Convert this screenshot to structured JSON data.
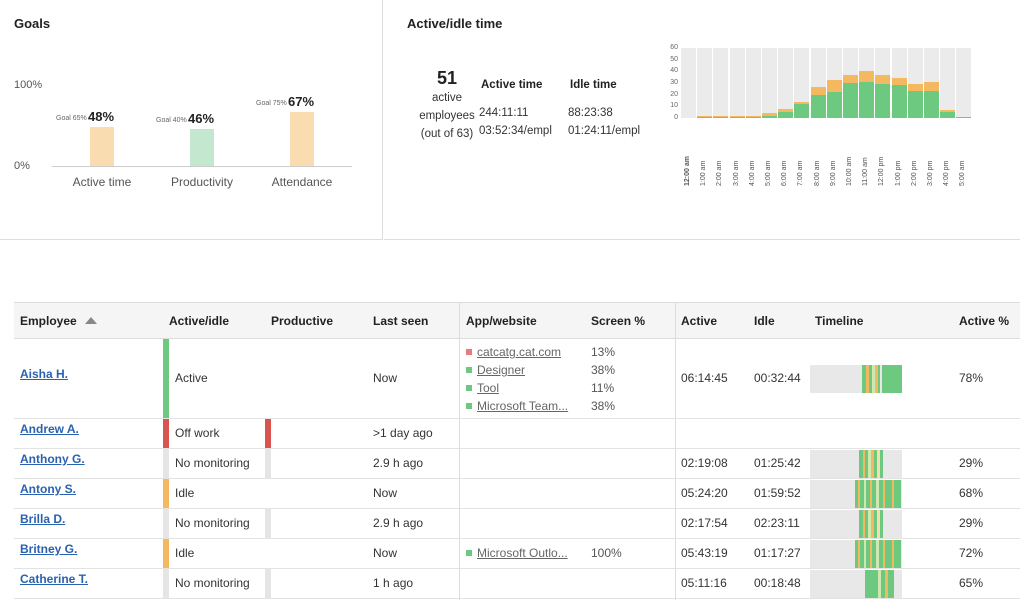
{
  "goals": {
    "title": "Goals",
    "y_top": "100%",
    "y_bottom": "0%",
    "items": [
      {
        "name": "Active time",
        "value": "48%",
        "goal": "Goal 65%",
        "pct": 0.48,
        "color": "#f9ddb0"
      },
      {
        "name": "Productivity",
        "value": "46%",
        "goal": "Goal 40%",
        "pct": 0.46,
        "color": "#c4e8cf"
      },
      {
        "name": "Attendance",
        "value": "67%",
        "goal": "Goal 75%",
        "pct": 0.67,
        "color": "#f9ddb0"
      }
    ]
  },
  "activity": {
    "title": "Active/idle time",
    "count": "51",
    "count_lines": [
      "active",
      "employees",
      "(out of 63)"
    ],
    "active_header": "Active time",
    "idle_header": "Idle time",
    "active_total": "244:11:11",
    "idle_total": "88:23:38",
    "active_per": "03:52:34/empl",
    "idle_per": "01:24:11/empl"
  },
  "chart_data": {
    "type": "bar",
    "stacked": true,
    "categories": [
      "12:00 am",
      "1:00 am",
      "2:00 am",
      "3:00 am",
      "4:00 am",
      "5:00 am",
      "6:00 am",
      "7:00 am",
      "8:00 am",
      "9:00 am",
      "10:00 am",
      "11:00 am",
      "12:00 pm",
      "1:00 pm",
      "2:00 pm",
      "3:00 pm",
      "4:00 pm",
      "5:00 am"
    ],
    "series": [
      {
        "values": [
          0,
          1,
          1,
          1,
          1,
          2,
          5,
          12,
          20,
          22,
          30,
          31,
          29,
          28,
          23,
          23,
          5,
          1
        ]
      },
      {
        "values": [
          0,
          1,
          1,
          1,
          1,
          2,
          3,
          2,
          7,
          11,
          7,
          9,
          8,
          6,
          6,
          8,
          2,
          0
        ]
      }
    ],
    "ylim": [
      0,
      60
    ],
    "yticks": [
      "60",
      "50",
      "40",
      "30",
      "20",
      "10",
      "0"
    ],
    "colors": {
      "active": "#6cc97f",
      "idle": "#f4b860",
      "background": "#ebebeb"
    }
  },
  "table": {
    "headers": {
      "employee": "Employee",
      "active_idle": "Active/idle",
      "productive": "Productive",
      "last_seen": "Last seen",
      "app": "App/website",
      "screen": "Screen %",
      "active": "Active",
      "idle": "Idle",
      "timeline": "Timeline",
      "active_pct": "Active %"
    },
    "rows": [
      {
        "name": "Aisha H.",
        "status": "Active",
        "status_color": "#6cc97f",
        "prod_color": "",
        "last_seen": "Now",
        "apps": [
          {
            "name": "catcatg.cat.com",
            "pct": "13%",
            "color": "#e87c7c"
          },
          {
            "name": "Designer",
            "pct": "38%",
            "color": "#6cc97f"
          },
          {
            "name": "Tool",
            "pct": "11%",
            "color": "#6cc97f"
          },
          {
            "name": "Microsoft Team...",
            "pct": "38%",
            "color": "#6cc97f"
          }
        ],
        "active": "06:14:45",
        "idle": "00:32:44",
        "active_pct": "78%",
        "timeline": "a"
      },
      {
        "name": "Andrew A.",
        "status": "Off work",
        "status_color": "#d9534f",
        "prod_color": "#d9534f",
        "last_seen": ">1 day ago",
        "apps": [],
        "active": "",
        "idle": "",
        "active_pct": "",
        "timeline": ""
      },
      {
        "name": "Anthony G.",
        "status": "No monitoring",
        "status_color": "#e5e5e5",
        "prod_color": "#e5e5e5",
        "last_seen": "2.9 h ago",
        "apps": [],
        "active": "02:19:08",
        "idle": "01:25:42",
        "active_pct": "29%",
        "timeline": "b"
      },
      {
        "name": "Antony S.",
        "status": "Idle",
        "status_color": "#f4b860",
        "prod_color": "",
        "last_seen": "Now",
        "apps": [],
        "active": "05:24:20",
        "idle": "01:59:52",
        "active_pct": "68%",
        "timeline": "c"
      },
      {
        "name": "Brilla D.",
        "status": "No monitoring",
        "status_color": "#e5e5e5",
        "prod_color": "#e5e5e5",
        "last_seen": "2.9 h ago",
        "apps": [],
        "active": "02:17:54",
        "idle": "02:23:11",
        "active_pct": "29%",
        "timeline": "b"
      },
      {
        "name": "Britney G.",
        "status": "Idle",
        "status_color": "#f4b860",
        "prod_color": "",
        "last_seen": "Now",
        "apps": [
          {
            "name": "Microsoft Outlo...",
            "pct": "100%",
            "color": "#6cc97f"
          }
        ],
        "active": "05:43:19",
        "idle": "01:17:27",
        "active_pct": "72%",
        "timeline": "c"
      },
      {
        "name": "Catherine T.",
        "status": "No monitoring",
        "status_color": "#e5e5e5",
        "prod_color": "#e5e5e5",
        "last_seen": "1 h ago",
        "apps": [],
        "active": "05:11:16",
        "idle": "00:18:48",
        "active_pct": "65%",
        "timeline": "d"
      }
    ]
  }
}
